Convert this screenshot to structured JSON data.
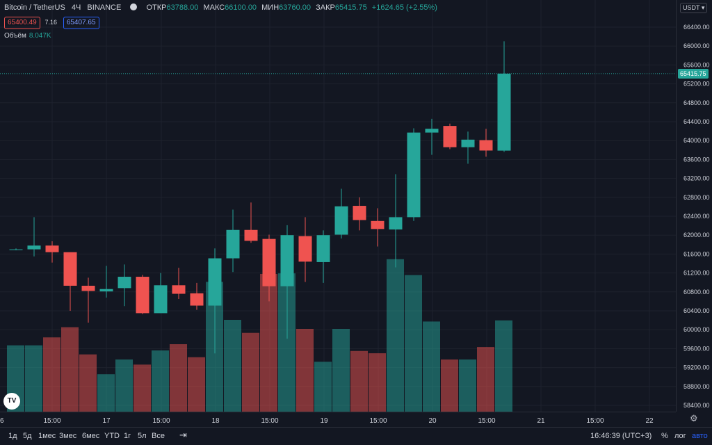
{
  "header": {
    "symbol": "Bitcoin / TetherUS",
    "interval": "4Ч",
    "exchange": "BINANCE",
    "open_label": "ОТКР",
    "open_value": "63788.00",
    "high_label": "МАКС",
    "high_value": "66100.00",
    "low_label": "МИН",
    "low_value": "63760.00",
    "close_label": "ЗАКР",
    "close_value": "65415.75",
    "change": "+1624.65 (+2.55%)"
  },
  "order": {
    "sell": "65400.49",
    "spread": "7.16",
    "buy": "65407.65"
  },
  "volume_legend": {
    "label": "Объём",
    "value": "8.047K"
  },
  "currency": "USDT ▾",
  "last_price_label": "65415.75",
  "price_axis": {
    "ticks": [
      "66400.00",
      "66000.00",
      "65600.00",
      "65200.00",
      "64800.00",
      "64400.00",
      "64000.00",
      "63600.00",
      "63200.00",
      "62800.00",
      "62400.00",
      "62000.00",
      "61600.00",
      "61200.00",
      "60800.00",
      "60400.00",
      "60000.00",
      "59600.00",
      "59200.00",
      "58800.00",
      "58400.00"
    ]
  },
  "time_axis": {
    "labels": [
      "6",
      "15:00",
      "17",
      "15:00",
      "18",
      "15:00",
      "19",
      "15:00",
      "20",
      "15:00",
      "21",
      "15:00",
      "22"
    ]
  },
  "bottom_bar": {
    "ranges": [
      "1д",
      "5д",
      "1мес",
      "3мес",
      "6мес",
      "YTD",
      "1г",
      "5л",
      "Все"
    ],
    "time": "16:46:39 (UTC+3)",
    "percent": "%",
    "log": "лог",
    "auto": "авто"
  },
  "colors": {
    "up": "#26a69a",
    "down": "#ef5350",
    "bg": "#131722",
    "grid": "#1e222d"
  },
  "chart_data": {
    "type": "candlestick",
    "y_unit": "USDT",
    "price_range": [
      58200,
      66800
    ],
    "last_price": 65415.75,
    "candles": [
      {
        "o": 61700,
        "h": 61720,
        "l": 61680,
        "c": 61700
      },
      {
        "o": 61700,
        "h": 62380,
        "l": 61550,
        "c": 61780
      },
      {
        "o": 61780,
        "h": 61870,
        "l": 61420,
        "c": 61640
      },
      {
        "o": 61640,
        "h": 61630,
        "l": 60400,
        "c": 60930
      },
      {
        "o": 60930,
        "h": 61100,
        "l": 60150,
        "c": 60820
      },
      {
        "o": 60810,
        "h": 61350,
        "l": 60680,
        "c": 60860
      },
      {
        "o": 60880,
        "h": 61380,
        "l": 60500,
        "c": 61120
      },
      {
        "o": 61120,
        "h": 61160,
        "l": 60330,
        "c": 60350
      },
      {
        "o": 60350,
        "h": 61200,
        "l": 60350,
        "c": 60940
      },
      {
        "o": 60940,
        "h": 61310,
        "l": 60650,
        "c": 60760
      },
      {
        "o": 60770,
        "h": 60990,
        "l": 60420,
        "c": 60510
      },
      {
        "o": 60510,
        "h": 61720,
        "l": 59500,
        "c": 61510
      },
      {
        "o": 61510,
        "h": 62540,
        "l": 61220,
        "c": 62110
      },
      {
        "o": 62110,
        "h": 62690,
        "l": 61840,
        "c": 61880
      },
      {
        "o": 61920,
        "h": 62010,
        "l": 60600,
        "c": 60920
      },
      {
        "o": 60920,
        "h": 62210,
        "l": 59810,
        "c": 62000
      },
      {
        "o": 61980,
        "h": 62380,
        "l": 61010,
        "c": 61440
      },
      {
        "o": 61430,
        "h": 62100,
        "l": 60990,
        "c": 62000
      },
      {
        "o": 62010,
        "h": 62980,
        "l": 61930,
        "c": 62610
      },
      {
        "o": 62620,
        "h": 62800,
        "l": 62100,
        "c": 62320
      },
      {
        "o": 62300,
        "h": 62570,
        "l": 61760,
        "c": 62130
      },
      {
        "o": 62120,
        "h": 63290,
        "l": 61320,
        "c": 62380
      },
      {
        "o": 62380,
        "h": 64260,
        "l": 62300,
        "c": 64170
      },
      {
        "o": 64170,
        "h": 64460,
        "l": 63700,
        "c": 64250
      },
      {
        "o": 64310,
        "h": 64360,
        "l": 63820,
        "c": 63860
      },
      {
        "o": 63860,
        "h": 64190,
        "l": 63510,
        "c": 64020
      },
      {
        "o": 64010,
        "h": 64250,
        "l": 63660,
        "c": 63790
      },
      {
        "o": 63788,
        "h": 66100,
        "l": 63760,
        "c": 65415.75
      }
    ],
    "volume": [
      11.7,
      11.7,
      13.1,
      14.9,
      10.1,
      6.6,
      9.2,
      8.3,
      10.8,
      11.9,
      9.6,
      22.9,
      16.2,
      13.9,
      24.3,
      24.4,
      14.6,
      8.8,
      14.6,
      10.7,
      10.3,
      26.9,
      24.1,
      15.9,
      9.2,
      9.2,
      11.4,
      16.1
    ]
  }
}
